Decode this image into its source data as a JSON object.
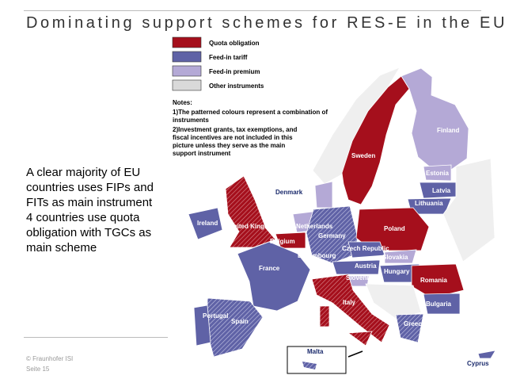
{
  "header": {
    "title": "Dominating support schemes for RES-E in the EU"
  },
  "body": [
    "A clear majority of EU countries uses FIPs and FITs as main instrument",
    "4 countries use quota obligation with TGCs as main scheme"
  ],
  "legend": [
    {
      "label": "Quota obligation",
      "color": "#a50f1c"
    },
    {
      "label": "Feed-in tariff",
      "color": "#5f62a6"
    },
    {
      "label": "Feed-in premium",
      "color": "#b4a9d6"
    },
    {
      "label": "Other instruments",
      "color": "#d9d9d9"
    }
  ],
  "notes": {
    "title": "Notes:",
    "lines": [
      "1)The patterned colours represent a combination of instruments",
      "2)Investment grants, tax exemptions, and fiscal incentives are not included in this picture unless they serve as the main support instrument"
    ]
  },
  "countries": [
    "Finland",
    "Sweden",
    "Estonia",
    "Latvia",
    "Lithuania",
    "Denmark",
    "Ireland",
    "United Kingdom",
    "Netherlands",
    "Germany",
    "Poland",
    "Belgium",
    "Luxembourg",
    "Czech Republic",
    "Slovakia",
    "Austria",
    "Hungary",
    "France",
    "Slovenia",
    "Romania",
    "Italy",
    "Bulgaria",
    "Portugal",
    "Spain",
    "Greece",
    "Malta",
    "Cyprus"
  ],
  "footer": {
    "copyright": "© Fraunhofer ISI",
    "page": "Seite 15"
  }
}
